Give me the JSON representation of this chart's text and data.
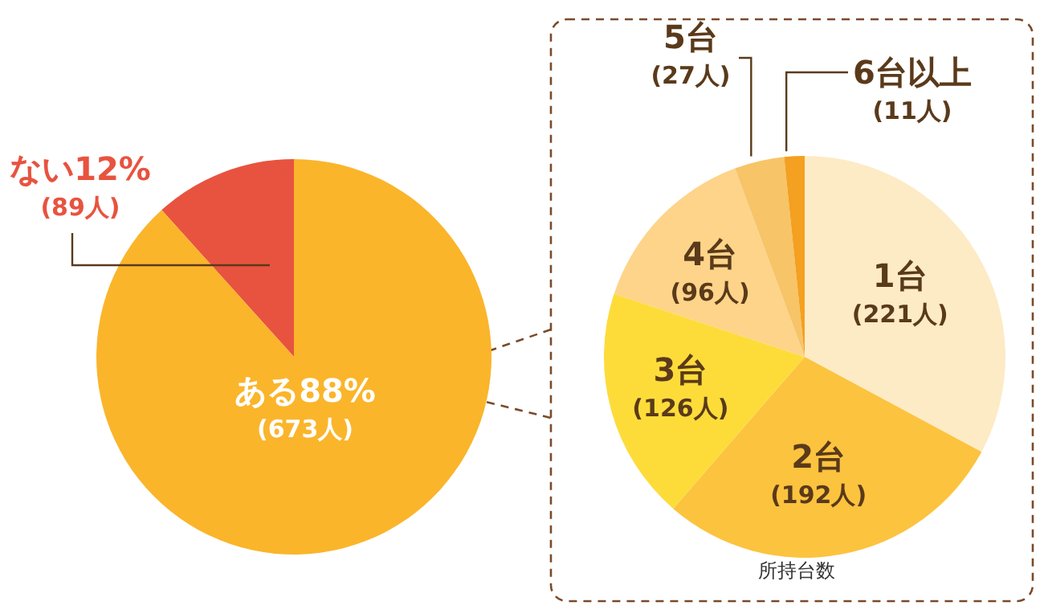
{
  "chart_data": [
    {
      "type": "pie",
      "categories": [
        "ない",
        "ある"
      ],
      "values": [
        89,
        673
      ],
      "value_labels": [
        "12%\n(89人)",
        "88%\n(673人)"
      ],
      "colors": [
        "#e8533f",
        "#fab52b"
      ]
    },
    {
      "type": "pie",
      "xlabel": "所持台数",
      "categories": [
        "1台",
        "2台",
        "3台",
        "4台",
        "5台",
        "6台以上"
      ],
      "values": [
        221,
        192,
        126,
        96,
        27,
        11
      ],
      "value_labels": [
        "(221人)",
        "(192人)",
        "(126人)",
        "(96人)",
        "(27人)",
        "(11人)"
      ],
      "colors": [
        "#fdebc6",
        "#fcc33f",
        "#fddc3a",
        "#fdd48a",
        "#f7c468",
        "#f4a020"
      ]
    }
  ]
}
